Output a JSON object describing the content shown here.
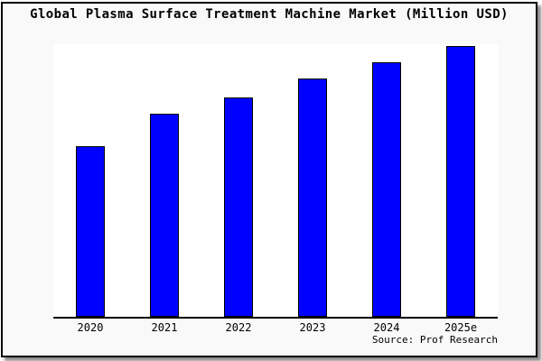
{
  "title": "Global Plasma Surface Treatment Machine Market (Million USD)",
  "source": "Source: Prof Research",
  "colors": {
    "bar_fill": "#0000ff",
    "bar_border": "#000000",
    "frame_background": "#f9f9f9",
    "plot_background": "#ffffff",
    "axis": "#000000",
    "text": "#000000"
  },
  "chart_data": {
    "type": "bar",
    "title": "Global Plasma Surface Treatment Machine Market (Million USD)",
    "categories": [
      "2020",
      "2021",
      "2022",
      "2023",
      "2024",
      "2025e"
    ],
    "values": [
      63,
      75,
      81,
      88,
      94,
      100
    ],
    "xlabel": "",
    "ylabel": "",
    "ylim": [
      0,
      100
    ],
    "y_axis_ticks_visible": false,
    "grid": false,
    "legend": "none",
    "source": "Source: Prof Research"
  }
}
